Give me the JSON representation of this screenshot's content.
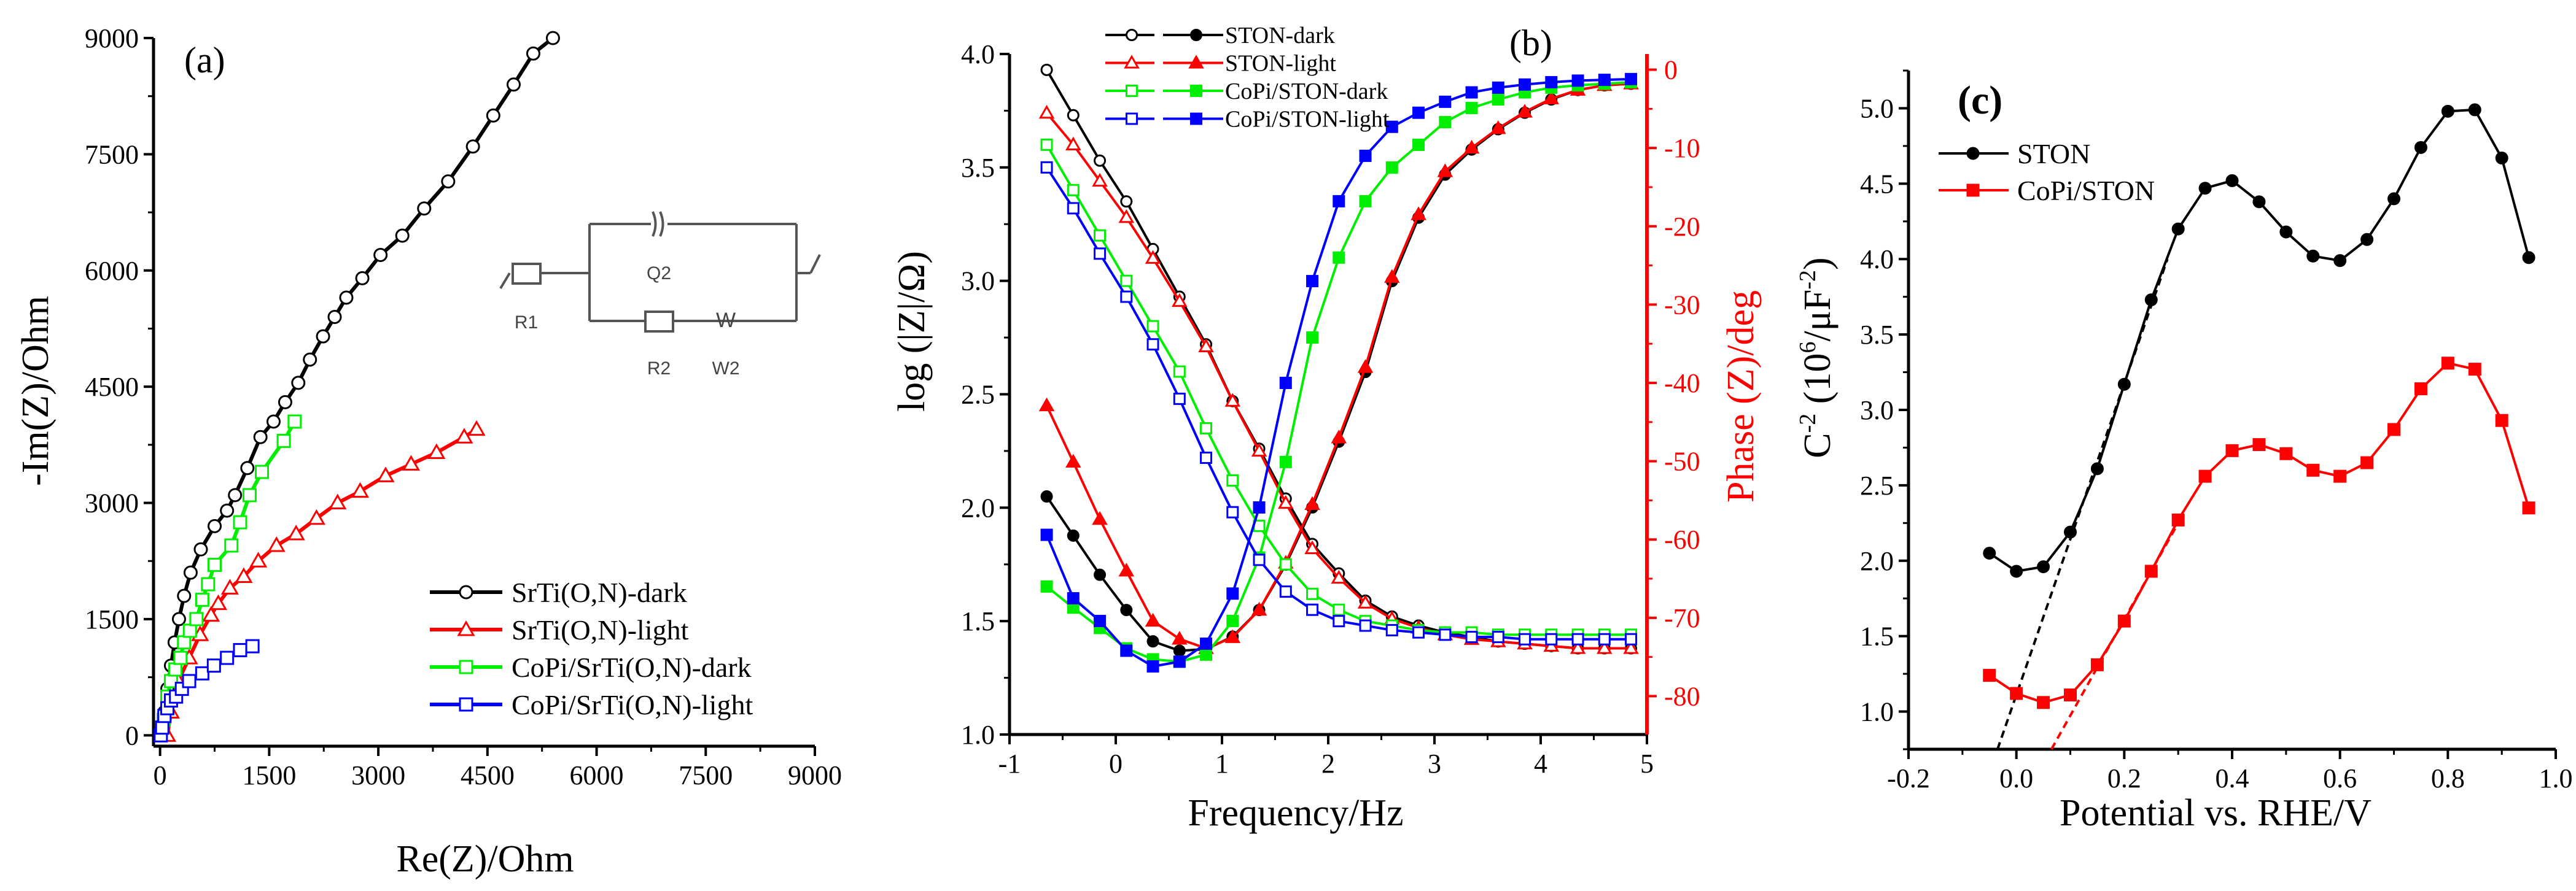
{
  "chart_data": [
    {
      "type": "scatter",
      "panel_label": "(a)",
      "title": "",
      "xlabel": "Re(Z)/Ohm",
      "ylabel": "-Im(Z)/Ohm",
      "xlim": [
        -90,
        9000
      ],
      "ylim": [
        -140,
        9000
      ],
      "xticks": [
        "0",
        "1500",
        "3000",
        "4500",
        "6000",
        "7500",
        "9000"
      ],
      "yticks": [
        "0",
        "1500",
        "3000",
        "4500",
        "6000",
        "7500",
        "9000"
      ],
      "legend_position": "bottom-right",
      "inset_circuit": {
        "labels": [
          "R1",
          "Q2",
          "R2",
          "W2",
          "W"
        ]
      },
      "series": [
        {
          "name": "SrTi(O,N)-dark",
          "color": "#000000",
          "marker": "circle-open",
          "x": [
            30,
            60,
            100,
            150,
            200,
            260,
            330,
            420,
            560,
            750,
            920,
            1030,
            1200,
            1380,
            1560,
            1720,
            1900,
            2060,
            2240,
            2400,
            2560,
            2780,
            3030,
            3330,
            3630,
            3960,
            4300,
            4580,
            4860,
            5130,
            5400
          ],
          "y": [
            100,
            300,
            600,
            900,
            1200,
            1500,
            1800,
            2100,
            2400,
            2700,
            2900,
            3100,
            3450,
            3850,
            4050,
            4300,
            4550,
            4850,
            5150,
            5400,
            5650,
            5900,
            6200,
            6450,
            6800,
            7150,
            7600,
            8000,
            8400,
            8800,
            9000
          ]
        },
        {
          "name": "SrTi(O,N)-light",
          "color": "#ff0000",
          "marker": "triangle-open",
          "x": [
            100,
            150,
            250,
            400,
            550,
            700,
            800,
            960,
            1150,
            1350,
            1600,
            1870,
            2150,
            2440,
            2750,
            3100,
            3450,
            3800,
            4180,
            4350
          ],
          "y": [
            0,
            300,
            700,
            1000,
            1300,
            1550,
            1700,
            1900,
            2050,
            2250,
            2450,
            2600,
            2800,
            3000,
            3150,
            3350,
            3500,
            3650,
            3850,
            3950
          ]
        },
        {
          "name": "CoPi/SrTi(O,N)-dark",
          "color": "#00ee00",
          "marker": "square-open",
          "x": [
            50,
            100,
            150,
            210,
            280,
            330,
            410,
            500,
            580,
            660,
            750,
            980,
            1100,
            1230,
            1400,
            1700,
            1850
          ],
          "y": [
            200,
            500,
            700,
            850,
            1000,
            1200,
            1350,
            1500,
            1750,
            1950,
            2200,
            2450,
            2750,
            3100,
            3400,
            3800,
            4050
          ]
        },
        {
          "name": "CoPi/SrTi(O,N)-light",
          "color": "#0000ff",
          "marker": "square-open",
          "x": [
            10,
            30,
            60,
            100,
            150,
            220,
            300,
            400,
            580,
            740,
            920,
            1100,
            1270
          ],
          "y": [
            0,
            100,
            250,
            350,
            450,
            500,
            600,
            700,
            800,
            900,
            1000,
            1100,
            1150
          ]
        }
      ]
    },
    {
      "type": "line",
      "panel_label": "(b)",
      "title": "",
      "xlabel": "Frequency/Hz",
      "ylabel": "log (|Z|/Ω)",
      "ylabel_right": "Phase (Z)/deg",
      "right_axis_color": "#ff0000",
      "xlim": [
        -1,
        5
      ],
      "ylim": [
        1.0,
        4.0
      ],
      "ylim_right": [
        -84.9,
        2.0
      ],
      "xticks": [
        "-1",
        "0",
        "1",
        "2",
        "3",
        "4",
        "5"
      ],
      "yticks": [
        "1.0",
        "1.5",
        "2.0",
        "2.5",
        "3.0",
        "3.5",
        "4.0"
      ],
      "yticks_right": [
        "0",
        "-10",
        "-20",
        "-30",
        "-40",
        "-50",
        "-60",
        "-70",
        "-80"
      ],
      "legend_position": "top-center",
      "x": [
        -0.65,
        -0.4,
        -0.15,
        0.1,
        0.35,
        0.6,
        0.85,
        1.1,
        1.35,
        1.6,
        1.85,
        2.1,
        2.35,
        2.6,
        2.85,
        3.1,
        3.35,
        3.6,
        3.85,
        4.1,
        4.35,
        4.6,
        4.85
      ],
      "series": [
        {
          "name": "STON-dark",
          "color": "#000000",
          "marker": "circle",
          "logZ": [
            3.93,
            3.73,
            3.53,
            3.35,
            3.14,
            2.93,
            2.72,
            2.47,
            2.26,
            2.04,
            1.84,
            1.71,
            1.59,
            1.52,
            1.48,
            1.45,
            1.43,
            1.41,
            1.4,
            1.39,
            1.38,
            1.38,
            1.38
          ],
          "phase": [
            -54.5,
            -59.5,
            -64.5,
            -69,
            -73,
            -74.2,
            -74,
            -72.4,
            -69,
            -63.2,
            -55.9,
            -47.5,
            -38.6,
            -27,
            -18.9,
            -13.4,
            -10.2,
            -7.6,
            -5.5,
            -3.8,
            -2.6,
            -2.0,
            -1.8
          ]
        },
        {
          "name": "STON-light",
          "color": "#ff0000",
          "marker": "triangle",
          "logZ": [
            3.74,
            3.6,
            3.44,
            3.28,
            3.1,
            2.91,
            2.71,
            2.47,
            2.25,
            2.02,
            1.82,
            1.69,
            1.58,
            1.51,
            1.47,
            1.44,
            1.42,
            1.41,
            1.4,
            1.39,
            1.38,
            1.38,
            1.38
          ],
          "phase": [
            -42.9,
            -50.1,
            -57.4,
            -64,
            -70.4,
            -72.7,
            -73.9,
            -72.5,
            -69,
            -63,
            -55.5,
            -47,
            -38,
            -26.5,
            -18.5,
            -13,
            -10,
            -7.5,
            -5.4,
            -3.7,
            -2.6,
            -2,
            -1.8
          ]
        },
        {
          "name": "CoPi/STON-dark",
          "color": "#00ee00",
          "marker": "square",
          "logZ": [
            3.6,
            3.4,
            3.2,
            3.0,
            2.8,
            2.6,
            2.35,
            2.12,
            1.92,
            1.75,
            1.62,
            1.55,
            1.5,
            1.48,
            1.46,
            1.45,
            1.45,
            1.44,
            1.44,
            1.44,
            1.44,
            1.44,
            1.44
          ],
          "phase": [
            -66,
            -68.7,
            -71.3,
            -73.9,
            -75.3,
            -75.6,
            -74.7,
            -70.4,
            -62.3,
            -50.1,
            -34.2,
            -24,
            -16.8,
            -12.5,
            -9.6,
            -6.7,
            -4.9,
            -3.8,
            -2.9,
            -2.3,
            -2.0,
            -1.8,
            -1.6
          ]
        },
        {
          "name": "CoPi/STON-light",
          "color": "#0000ff",
          "marker": "square",
          "logZ": [
            3.5,
            3.32,
            3.12,
            2.93,
            2.72,
            2.48,
            2.22,
            1.98,
            1.77,
            1.63,
            1.55,
            1.5,
            1.48,
            1.46,
            1.45,
            1.44,
            1.43,
            1.43,
            1.42,
            1.42,
            1.42,
            1.42,
            1.42
          ],
          "phase": [
            -59.4,
            -67.5,
            -70.4,
            -74.2,
            -76.2,
            -75.6,
            -73.3,
            -66.9,
            -55.9,
            -40,
            -27,
            -16.8,
            -11,
            -7.3,
            -5.5,
            -4.1,
            -2.9,
            -2.3,
            -1.9,
            -1.6,
            -1.4,
            -1.3,
            -1.2
          ]
        }
      ]
    },
    {
      "type": "line",
      "panel_label": "(c)",
      "title": "",
      "xlabel": "Potential vs.  RHE/V",
      "ylabel_parts": [
        "C",
        "-2",
        " (10",
        "6",
        "/μF",
        "-2",
        ")"
      ],
      "xlim": [
        -0.2,
        1.0
      ],
      "ylim": [
        0.75,
        5.25
      ],
      "xticks": [
        "-0.2",
        "0.0",
        "0.2",
        "0.4",
        "0.6",
        "0.8",
        "1.0"
      ],
      "yticks": [
        "1.0",
        "1.5",
        "2.0",
        "2.5",
        "3.0",
        "3.5",
        "4.0",
        "4.5",
        "5.0"
      ],
      "legend_position": "top-left",
      "x": [
        -0.05,
        0,
        0.05,
        0.1,
        0.15,
        0.2,
        0.25,
        0.3,
        0.35,
        0.4,
        0.45,
        0.5,
        0.55,
        0.6,
        0.65,
        0.7,
        0.75,
        0.8,
        0.85,
        0.9,
        0.95
      ],
      "series": [
        {
          "name": "STON",
          "color": "#000000",
          "marker": "circle",
          "values": [
            2.05,
            1.93,
            1.96,
            2.19,
            2.61,
            3.17,
            3.73,
            4.2,
            4.47,
            4.52,
            4.38,
            4.18,
            4.02,
            3.99,
            4.13,
            4.4,
            4.74,
            4.98,
            4.99,
            4.67,
            4.01
          ],
          "fit_line": [
            [
              -0.035,
              0.75
            ],
            [
              0.28,
              4.0
            ]
          ]
        },
        {
          "name": "CoPi/STON",
          "color": "#ff0000",
          "marker": "square",
          "values": [
            1.24,
            1.12,
            1.06,
            1.11,
            1.31,
            1.6,
            1.93,
            2.27,
            2.56,
            2.73,
            2.77,
            2.71,
            2.6,
            2.56,
            2.65,
            2.87,
            3.14,
            3.31,
            3.27,
            2.93,
            2.35
          ],
          "fit_line": [
            [
              0.065,
              0.75
            ],
            [
              0.3,
              2.25
            ]
          ]
        }
      ]
    }
  ]
}
